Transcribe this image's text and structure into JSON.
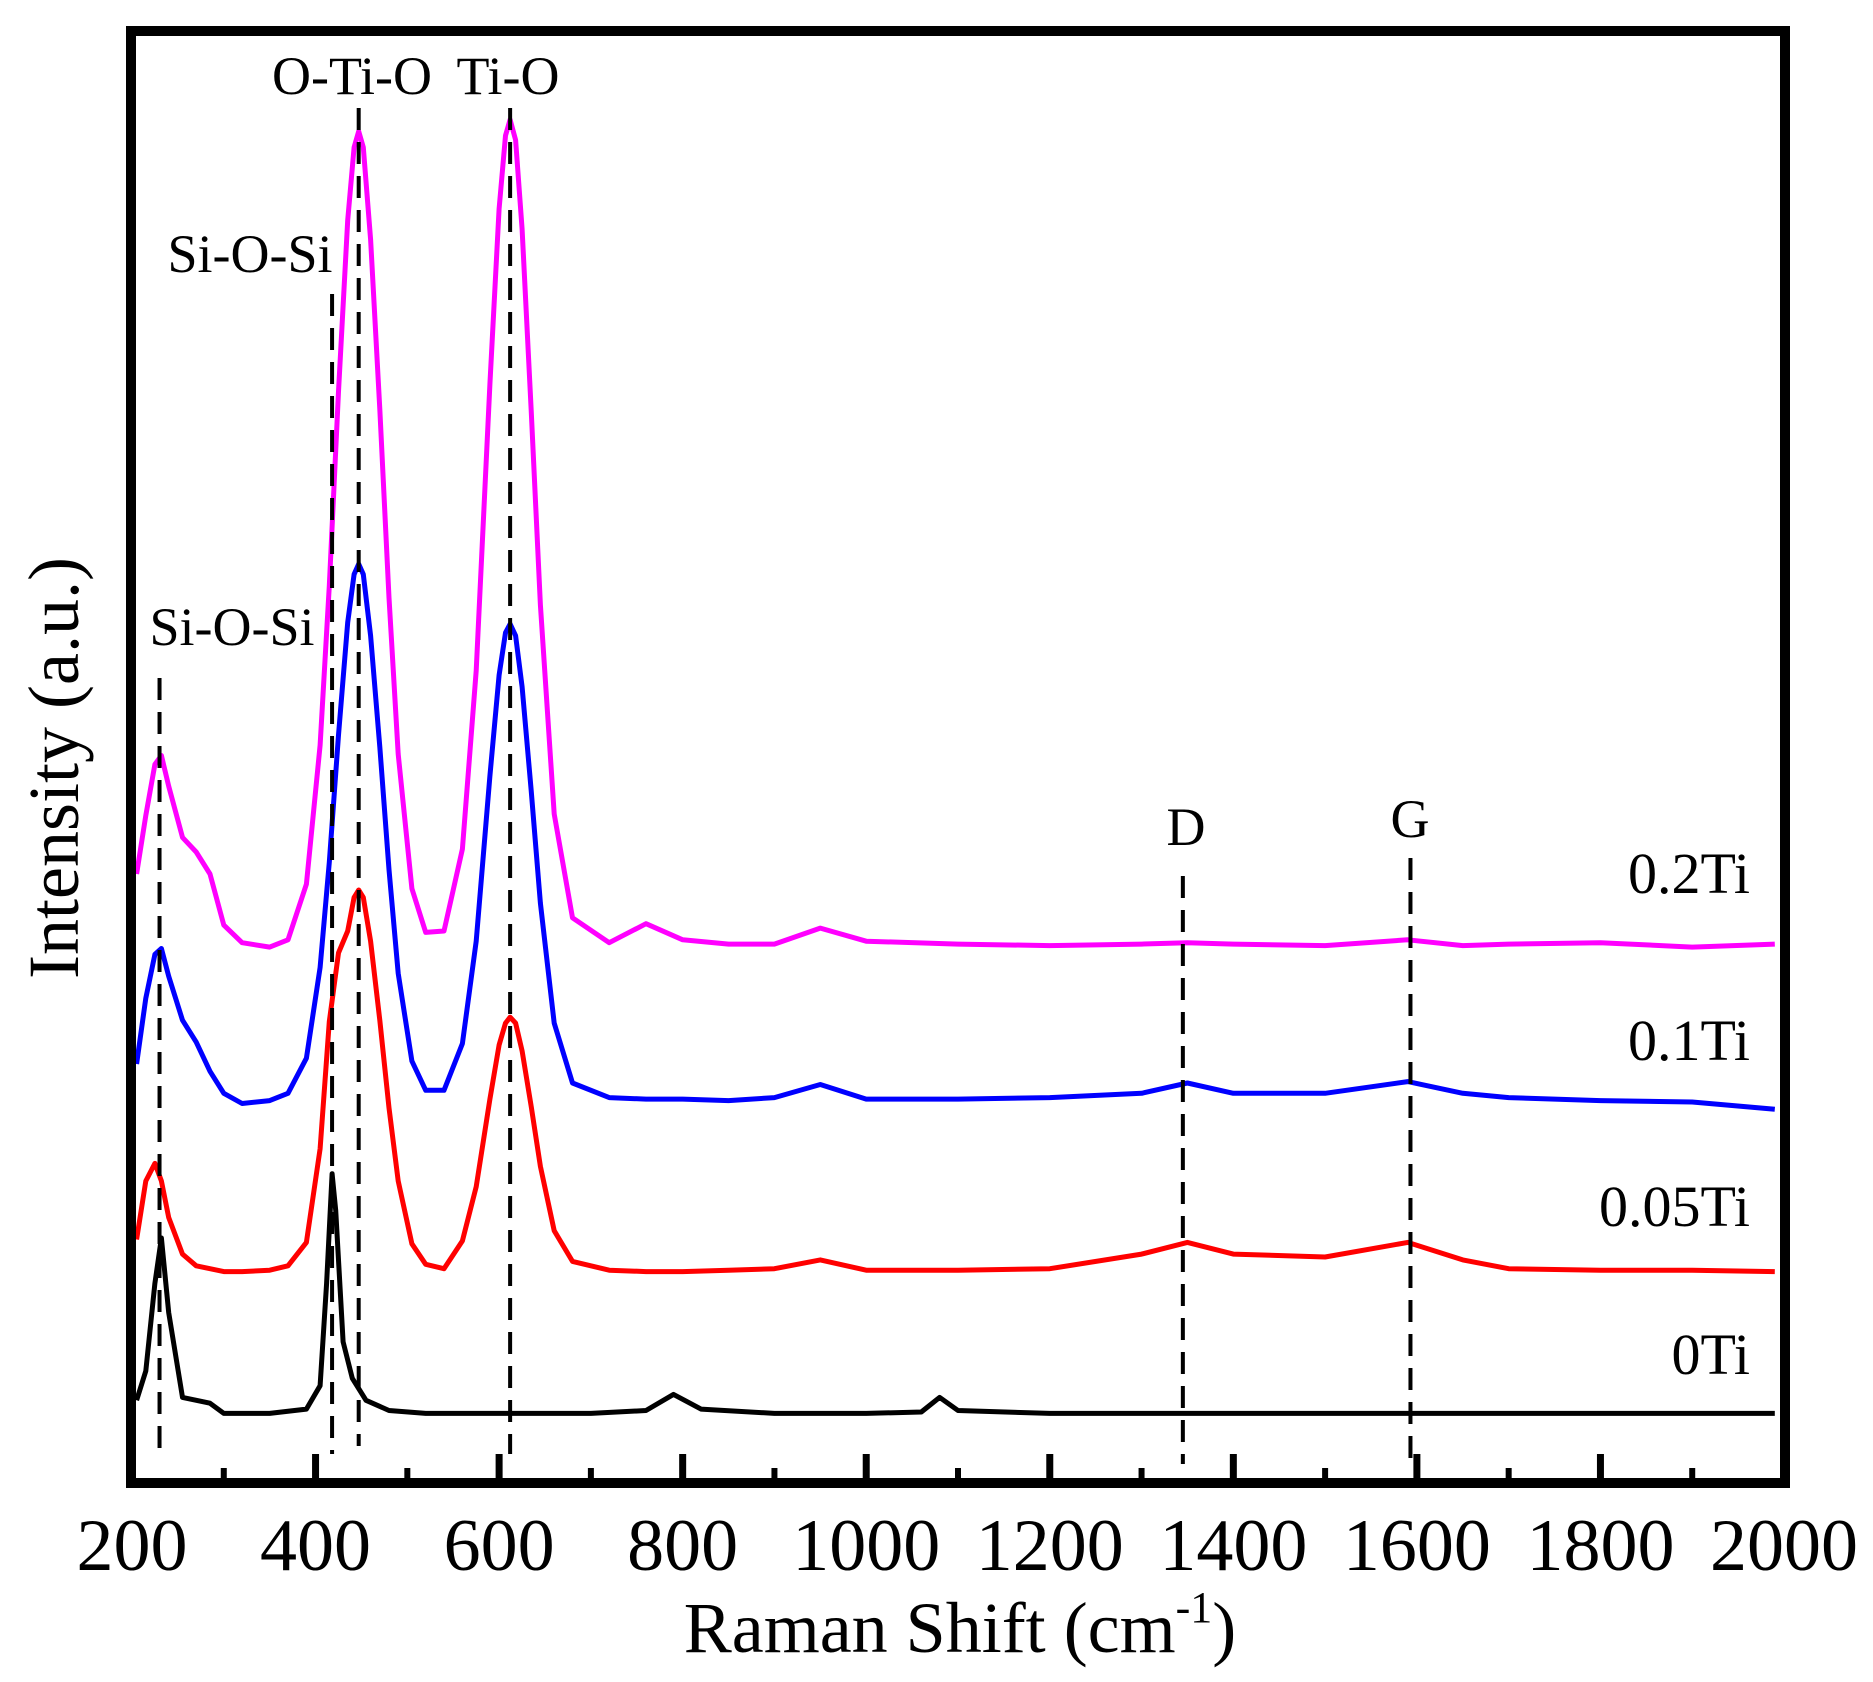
{
  "chart_data": {
    "type": "line",
    "xlabel": "Raman Shift (cm",
    "xlabel_sup": "-1",
    "xlabel_close": ")",
    "ylabel": "Intensity (a.u.)",
    "xlim": [
      200,
      2000
    ],
    "ylim": [
      0,
      100
    ],
    "grid": false,
    "legend": "inline labels at right end of each curve",
    "x_ticks": [
      "200",
      "400",
      "600",
      "800",
      "1000",
      "1200",
      "1400",
      "1600",
      "1800",
      "2000"
    ],
    "series": [
      {
        "name": "0.2Ti",
        "color": "#ff00ff",
        "x": [
          205,
          215,
          225,
          232,
          240,
          255,
          270,
          285,
          300,
          320,
          350,
          370,
          390,
          405,
          415,
          425,
          435,
          442,
          447,
          452,
          460,
          470,
          480,
          490,
          505,
          520,
          540,
          560,
          575,
          590,
          600,
          607,
          612,
          618,
          625,
          635,
          645,
          660,
          680,
          720,
          760,
          800,
          850,
          900,
          950,
          1000,
          1100,
          1200,
          1300,
          1350,
          1400,
          1500,
          1590,
          1650,
          1700,
          1800,
          1900,
          1990
        ],
        "y": [
          42,
          46,
          49.5,
          50.1,
          48,
          44.5,
          43.5,
          42,
          38.5,
          37.3,
          37,
          37.5,
          41.3,
          50.8,
          61.7,
          75,
          86.7,
          91.7,
          92.8,
          91.7,
          85.4,
          73.8,
          60.9,
          50.2,
          41,
          38,
          38.1,
          43.7,
          55.9,
          75.5,
          87.5,
          92.5,
          93.6,
          92.2,
          86.1,
          73.7,
          60.4,
          46.1,
          39,
          37.3,
          38.6,
          37.5,
          37.2,
          37.2,
          38.3,
          37.4,
          37.2,
          37.1,
          37.2,
          37.3,
          37.2,
          37.1,
          37.5,
          37.1,
          37.2,
          37.3,
          37.0,
          37.2
        ]
      },
      {
        "name": "0.1Ti",
        "color": "#0000ff",
        "x": [
          205,
          215,
          225,
          232,
          240,
          255,
          270,
          285,
          300,
          320,
          350,
          370,
          390,
          405,
          415,
          425,
          435,
          442,
          447,
          452,
          460,
          470,
          480,
          490,
          505,
          520,
          540,
          560,
          575,
          590,
          600,
          607,
          612,
          618,
          625,
          635,
          645,
          660,
          680,
          720,
          760,
          800,
          850,
          900,
          950,
          1000,
          1100,
          1200,
          1300,
          1350,
          1400,
          1500,
          1590,
          1650,
          1700,
          1800,
          1900,
          1990
        ],
        "y": [
          29,
          33.5,
          36.5,
          36.9,
          35,
          32,
          30.5,
          28.5,
          27,
          26.3,
          26.5,
          27,
          29.4,
          35.6,
          42.8,
          51.5,
          59.2,
          62.5,
          63.2,
          62.5,
          58.3,
          50.7,
          42.3,
          35.2,
          29.2,
          27.2,
          27.2,
          30.4,
          37.4,
          48.7,
          55.6,
          58.5,
          59.1,
          58.3,
          54.8,
          47.7,
          40,
          31.8,
          27.7,
          26.7,
          26.6,
          26.6,
          26.5,
          26.7,
          27.6,
          26.6,
          26.6,
          26.7,
          27,
          27.7,
          27,
          27,
          27.8,
          27,
          26.7,
          26.5,
          26.4,
          25.9
        ]
      },
      {
        "name": "0.05Ti",
        "color": "#ff0000",
        "x": [
          205,
          215,
          225,
          232,
          240,
          255,
          270,
          285,
          300,
          320,
          350,
          370,
          390,
          405,
          415,
          425,
          435,
          442,
          447,
          452,
          460,
          470,
          480,
          490,
          505,
          520,
          540,
          560,
          575,
          590,
          600,
          607,
          612,
          618,
          625,
          635,
          645,
          660,
          680,
          720,
          760,
          800,
          850,
          900,
          950,
          1000,
          1100,
          1200,
          1300,
          1350,
          1400,
          1500,
          1590,
          1650,
          1700,
          1800,
          1900,
          1990
        ],
        "y": [
          17,
          21,
          22.2,
          21,
          18.5,
          16,
          15.2,
          15,
          14.8,
          14.8,
          14.9,
          15.2,
          16.8,
          23.2,
          31.9,
          36.6,
          38.1,
          40.4,
          40.9,
          40.4,
          37.4,
          32,
          26,
          21,
          16.7,
          15.3,
          15,
          16.9,
          20.6,
          26.6,
          30.3,
          31.8,
          32.2,
          31.8,
          29.9,
          26.1,
          22,
          17.6,
          15.5,
          14.9,
          14.8,
          14.8,
          14.9,
          15,
          15.6,
          14.9,
          14.9,
          15,
          16,
          16.8,
          16,
          15.8,
          16.8,
          15.6,
          15,
          14.9,
          14.9,
          14.8
        ]
      },
      {
        "name": "0Ti",
        "color": "#000000",
        "x": [
          205,
          215,
          225,
          232,
          240,
          255,
          285,
          300,
          350,
          390,
          405,
          412,
          418,
          422,
          430,
          440,
          455,
          480,
          520,
          600,
          700,
          760,
          790,
          820,
          900,
          1000,
          1060,
          1080,
          1100,
          1200,
          1300,
          1400,
          1500,
          1600,
          1700,
          1800,
          1900,
          1990
        ],
        "y": [
          6,
          8,
          14,
          17.1,
          12,
          6.2,
          5.8,
          5.1,
          5.1,
          5.4,
          7,
          14,
          21.5,
          19,
          10,
          7.5,
          6,
          5.3,
          5.1,
          5.1,
          5.1,
          5.3,
          6.4,
          5.4,
          5.1,
          5.1,
          5.2,
          6.2,
          5.3,
          5.1,
          5.1,
          5.1,
          5.1,
          5.1,
          5.1,
          5.1,
          5.1,
          5.1
        ]
      }
    ],
    "reference_lines": [
      {
        "x": 230,
        "label": "Si-O-Si"
      },
      {
        "x": 418,
        "label": "Si-O-Si"
      },
      {
        "x": 447,
        "label": "O-Ti-O"
      },
      {
        "x": 612,
        "label": "Ti-O"
      },
      {
        "x": 1345,
        "label": "D"
      },
      {
        "x": 1593,
        "label": "G"
      }
    ]
  }
}
